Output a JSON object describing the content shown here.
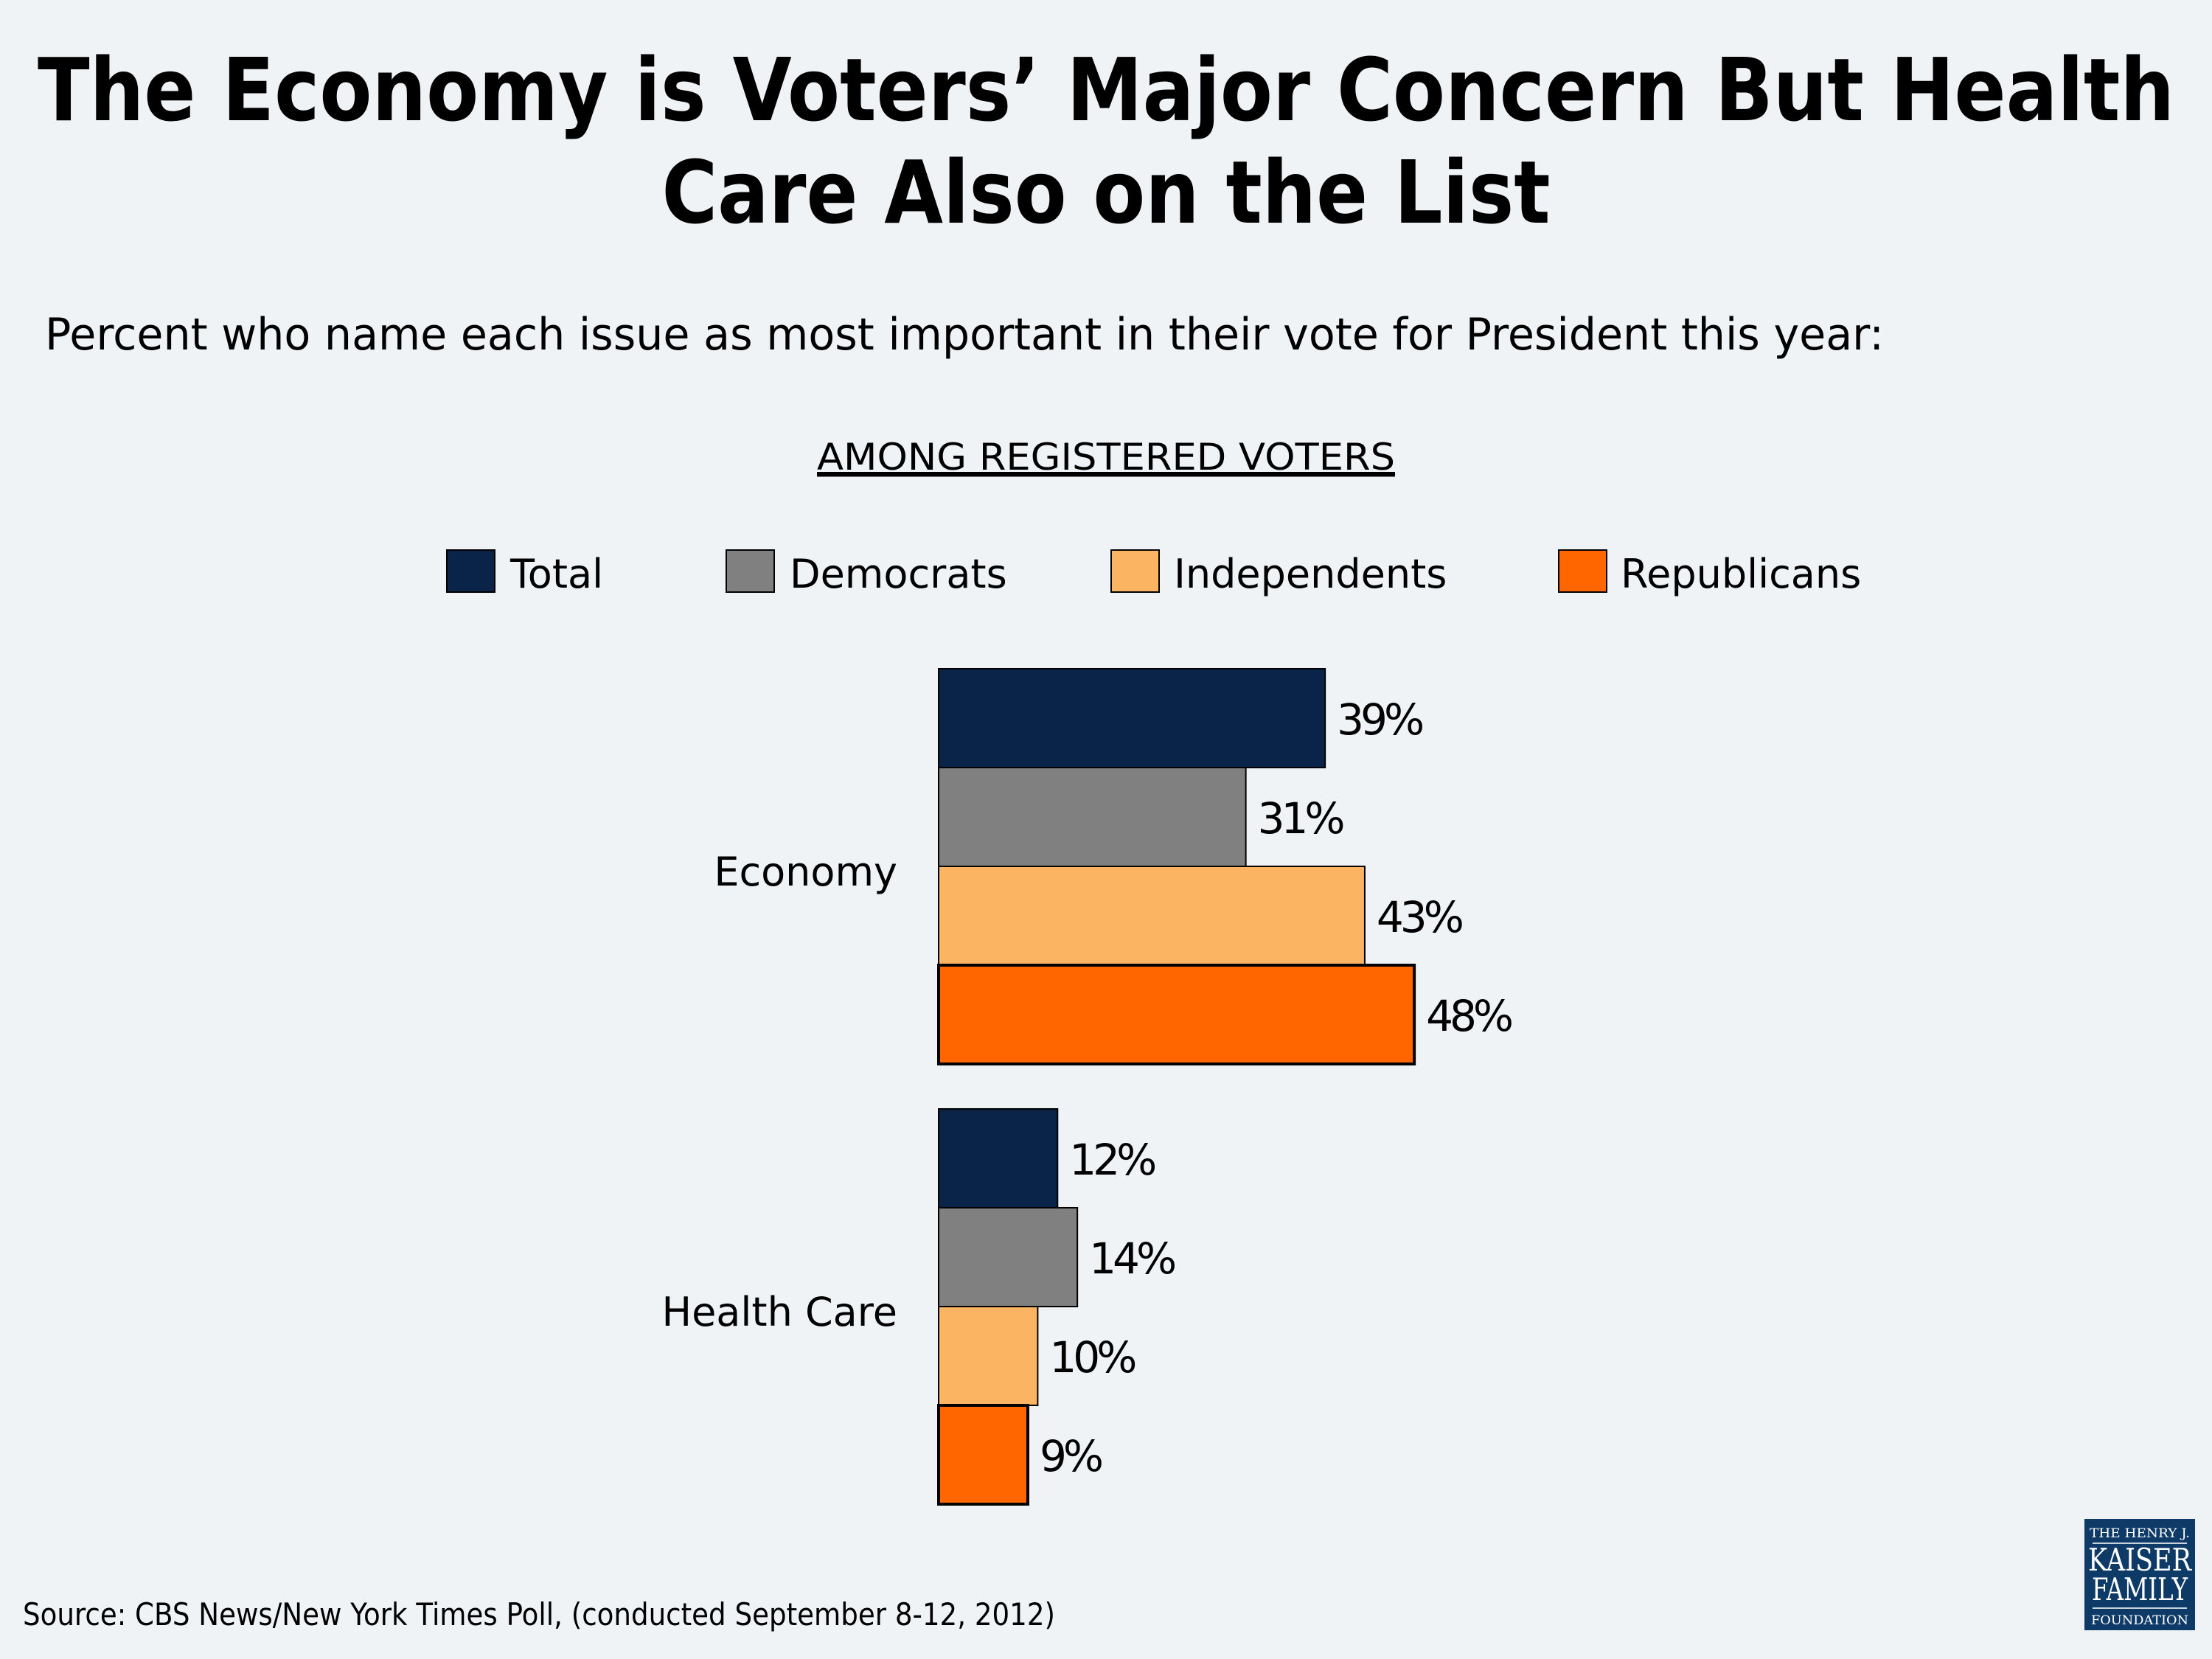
{
  "title_lines": [
    "The Economy is Voters’ Major Concern But Health",
    "Care Also on the List"
  ],
  "subtitle": "Percent who name each issue as most important in their vote for President this year:",
  "group_label": "AMONG REGISTERED VOTERS",
  "source": "Source: CBS News/New York Times Poll, (conducted September 8-12, 2012)",
  "logo": {
    "line1": "THE HENRY J.",
    "line2": "KAISER",
    "line3": "FAMILY",
    "line4": "FOUNDATION",
    "color": "#0d3a66"
  },
  "chart_data": {
    "type": "bar",
    "orientation": "horizontal",
    "categories": [
      "Economy",
      "Health Care"
    ],
    "series": [
      {
        "name": "Total",
        "values": [
          39,
          12
        ],
        "color": "#0a2349"
      },
      {
        "name": "Democrats",
        "values": [
          31,
          14
        ],
        "color": "#808080"
      },
      {
        "name": "Independents",
        "values": [
          43,
          10
        ],
        "color": "#fbb462"
      },
      {
        "name": "Republicans",
        "values": [
          48,
          9
        ],
        "color": "#ff6600"
      }
    ],
    "value_format": "{v}%",
    "legend_position": "top",
    "grid": false,
    "axes_visible": false
  }
}
